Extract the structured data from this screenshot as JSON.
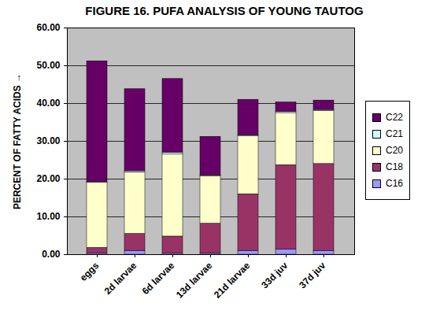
{
  "chart_data": {
    "type": "bar",
    "title": "FIGURE 16. PUFA ANALYSIS OF YOUNG TAUTOG",
    "y_label": "PERCENT OF FATTY ACIDS",
    "categories": [
      "eggs",
      "2d larvae",
      "6d larvae",
      "13d larvae",
      "21d larvae",
      "33d juv",
      "37d juv"
    ],
    "series": [
      {
        "name": "C16",
        "color": "#9999ff",
        "values": [
          0.3,
          1.0,
          0.3,
          0.3,
          1.0,
          1.3,
          1.0
        ]
      },
      {
        "name": "C18",
        "color": "#993366",
        "values": [
          1.5,
          4.5,
          4.5,
          7.9,
          15.0,
          22.4,
          23.0
        ]
      },
      {
        "name": "C20",
        "color": "#ffffcc",
        "values": [
          17.2,
          16.3,
          21.7,
          12.6,
          15.3,
          13.8,
          14.0
        ]
      },
      {
        "name": "C21",
        "color": "#ccffff",
        "values": [
          0.2,
          0.3,
          0.5,
          0.2,
          0.3,
          0.3,
          0.3
        ]
      },
      {
        "name": "C22",
        "color": "#660066",
        "values": [
          32.0,
          21.7,
          19.5,
          10.2,
          9.4,
          2.5,
          2.5
        ]
      }
    ],
    "stacked": true,
    "ylim": [
      0,
      60
    ],
    "yticks": [
      {
        "value": 0,
        "label": "0.00"
      },
      {
        "value": 10,
        "label": "10.00"
      },
      {
        "value": 20,
        "label": "20.00"
      },
      {
        "value": 30,
        "label": "30.00"
      },
      {
        "value": 40,
        "label": "40.00"
      },
      {
        "value": 50,
        "label": "50.00"
      },
      {
        "value": 60,
        "label": "60.00"
      }
    ],
    "grid": true,
    "legend": "right"
  }
}
